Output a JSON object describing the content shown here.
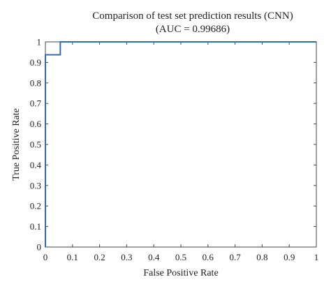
{
  "chart_data": {
    "type": "line",
    "title": "Comparison of test set prediction results (CNN)",
    "subtitle": "(AUC = 0.99686)",
    "xlabel": "False Positive Rate",
    "ylabel": "True Positive Rate",
    "xlim": [
      0,
      1
    ],
    "ylim": [
      0,
      1
    ],
    "x_ticks": [
      "0",
      "0.1",
      "0.2",
      "0.3",
      "0.4",
      "0.5",
      "0.6",
      "0.7",
      "0.8",
      "0.9",
      "1"
    ],
    "y_ticks": [
      "0",
      "0.1",
      "0.2",
      "0.3",
      "0.4",
      "0.5",
      "0.6",
      "0.7",
      "0.8",
      "0.9",
      "1"
    ],
    "grid": false,
    "series": [
      {
        "color": "#2f6db3",
        "x": [
          0,
          0,
          0.055,
          0.055,
          1
        ],
        "y": [
          0,
          0.937,
          0.937,
          1,
          1
        ]
      }
    ]
  }
}
